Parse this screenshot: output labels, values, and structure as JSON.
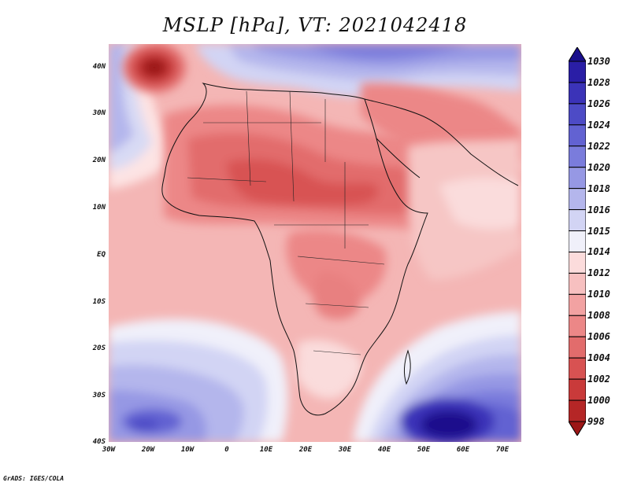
{
  "title": "MSLP [hPa], VT: 2021042418",
  "credit": "GrADS: IGES/COLA",
  "axes": {
    "lat_labels": [
      "40N",
      "30N",
      "20N",
      "10N",
      "EQ",
      "10S",
      "20S",
      "30S",
      "40S"
    ],
    "lon_labels": [
      "30W",
      "20W",
      "10W",
      "0",
      "10E",
      "20E",
      "30E",
      "40E",
      "50E",
      "60E",
      "70E"
    ]
  },
  "colorbar": {
    "units": "hPa",
    "levels": [
      "1030",
      "1028",
      "1026",
      "1024",
      "1022",
      "1020",
      "1018",
      "1016",
      "1015",
      "1014",
      "1012",
      "1010",
      "1008",
      "1006",
      "1004",
      "1002",
      "1000",
      "998"
    ],
    "colors": [
      "#1a0f8c",
      "#2a1ea6",
      "#3b33b8",
      "#4d4bc6",
      "#6262d2",
      "#7a7cdc",
      "#9698e4",
      "#b4b6ec",
      "#d2d4f4",
      "#f0f0fa",
      "#fcdcdc",
      "#f7c0c0",
      "#f2a2a2",
      "#ec8787",
      "#e26c6c",
      "#d85252",
      "#c93a3a",
      "#b52626",
      "#9c1616"
    ]
  },
  "map": {
    "region": "Africa and surrounding oceans",
    "extent": {
      "lon_min": -30,
      "lon_max": 75,
      "lat_min": -40,
      "lat_max": 45
    }
  }
}
